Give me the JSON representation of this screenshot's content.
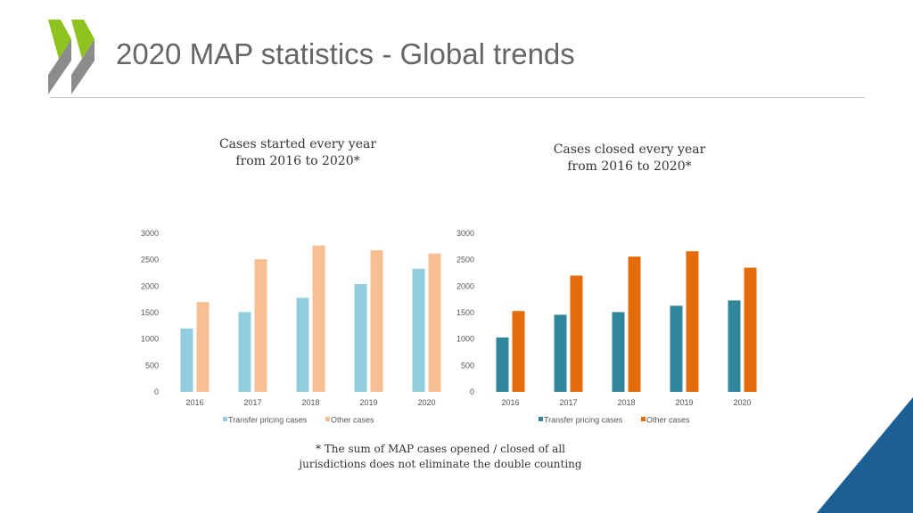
{
  "slide": {
    "title": "2020 MAP statistics - Global trends",
    "footnote_line1": "* The sum of MAP cases opened / closed of all",
    "footnote_line2": "jurisdictions does not eliminate the double counting"
  },
  "colors": {
    "logo_green": "#8dc21f",
    "logo_gray": "#8c8c8c",
    "corner_blue": "#1b5f95",
    "started_transfer": "#92cddf",
    "started_other": "#f8bf93",
    "closed_transfer": "#31869b",
    "closed_other": "#e46c0a"
  },
  "chart_data": [
    {
      "type": "bar",
      "title_line1": "Cases started every year",
      "title_line2": "from 2016 to 2020*",
      "categories": [
        "2016",
        "2017",
        "2018",
        "2019",
        "2020"
      ],
      "y_ticks": [
        "0",
        "500",
        "1000",
        "1500",
        "2000",
        "2500",
        "3000"
      ],
      "ylim": [
        0,
        3000
      ],
      "grid": false,
      "legend_position": "bottom",
      "series": [
        {
          "name": "Transfer pricing cases",
          "values": [
            1200,
            1510,
            1780,
            2040,
            2330
          ]
        },
        {
          "name": "Other cases",
          "values": [
            1700,
            2510,
            2770,
            2680,
            2620
          ]
        }
      ]
    },
    {
      "type": "bar",
      "title_line1": "Cases closed every year",
      "title_line2": "from 2016 to 2020*",
      "categories": [
        "2016",
        "2017",
        "2018",
        "2019",
        "2020"
      ],
      "y_ticks": [
        "0",
        "500",
        "1000",
        "1500",
        "2000",
        "2500",
        "3000"
      ],
      "ylim": [
        0,
        3000
      ],
      "grid": false,
      "legend_position": "bottom",
      "series": [
        {
          "name": "Transfer pricing cases",
          "values": [
            1030,
            1460,
            1510,
            1630,
            1730
          ]
        },
        {
          "name": "Other cases",
          "values": [
            1530,
            2200,
            2560,
            2660,
            2350
          ]
        }
      ]
    }
  ]
}
